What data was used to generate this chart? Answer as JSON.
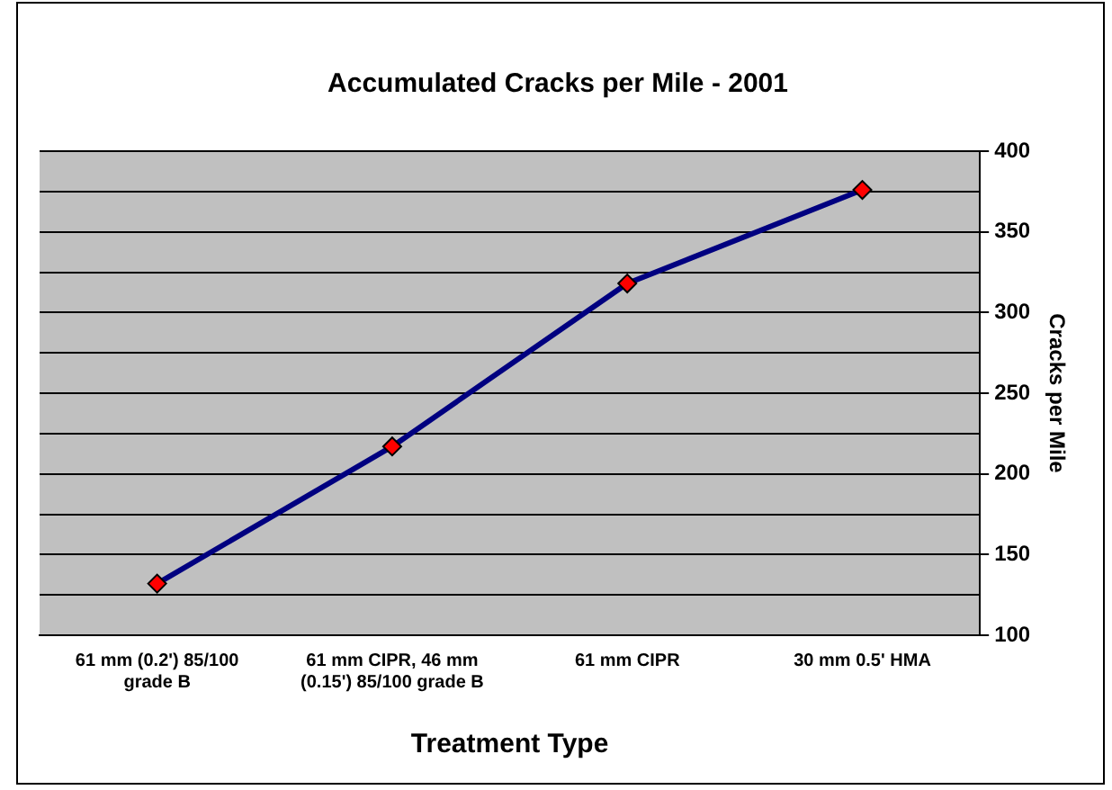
{
  "chart_data": {
    "type": "line",
    "title": "Accumulated Cracks per Mile - 2001",
    "xlabel": "Treatment Type",
    "ylabel": "Cracks per Mile",
    "categories": [
      "61 mm (0.2') 85/100 grade B",
      "61 mm CIPR, 46 mm (0.15') 85/100 grade B",
      "61 mm CIPR",
      "30 mm 0.5' HMA"
    ],
    "series": [
      {
        "color": "#000080",
        "values": [
          132,
          217,
          318,
          376
        ]
      }
    ],
    "ylim": [
      100,
      400
    ],
    "yticks": [
      100,
      {
        "value": 125,
        "label": null
      },
      150,
      {
        "value": 175,
        "label": null
      },
      200,
      {
        "value": 225,
        "label": null
      },
      250,
      {
        "value": 275,
        "label": null
      },
      300,
      {
        "value": 325,
        "label": null
      },
      350,
      {
        "value": 375,
        "label": null
      },
      400
    ],
    "grid": "y",
    "legend": false,
    "marker": "diamond",
    "line_style": "solid"
  }
}
